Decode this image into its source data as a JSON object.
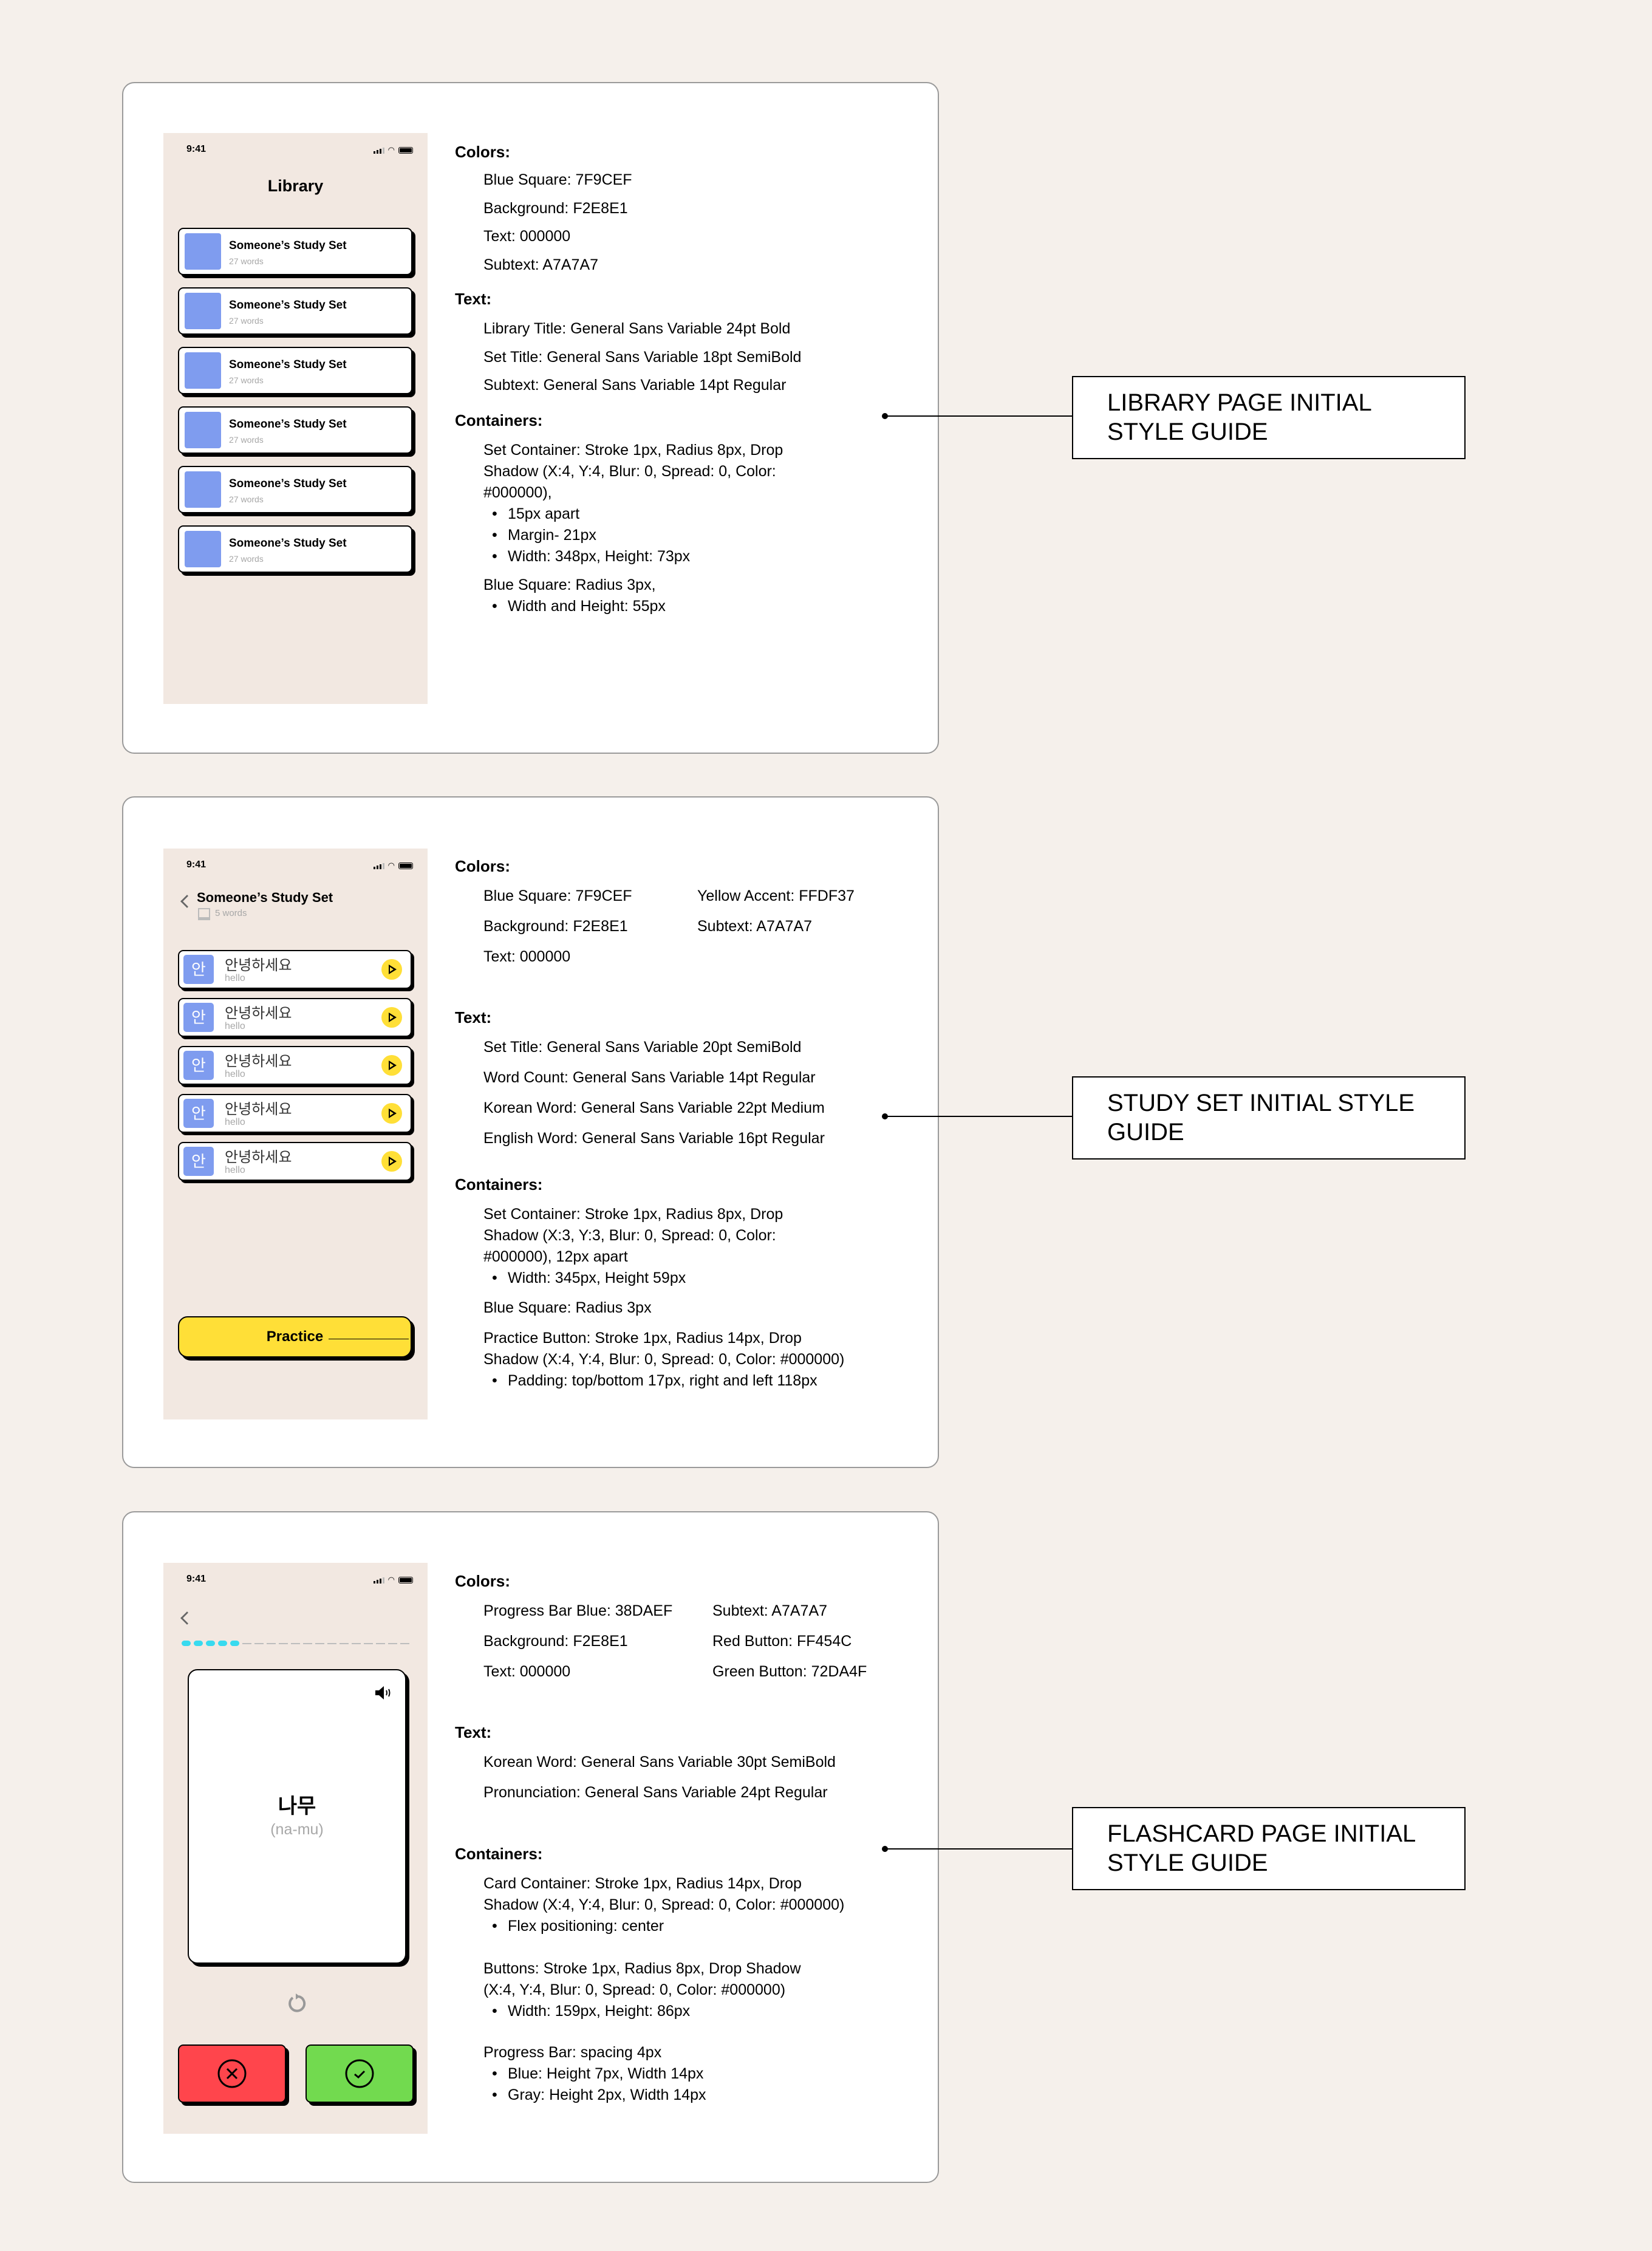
{
  "status_time": "9:41",
  "library": {
    "screen": {
      "title": "Library",
      "sets": [
        {
          "title": "Someone’s Study Set",
          "subtitle": "27 words"
        },
        {
          "title": "Someone’s Study Set",
          "subtitle": "27 words"
        },
        {
          "title": "Someone’s Study Set",
          "subtitle": "27 words"
        },
        {
          "title": "Someone’s Study Set",
          "subtitle": "27 words"
        },
        {
          "title": "Someone’s Study Set",
          "subtitle": "27 words"
        },
        {
          "title": "Someone’s Study Set",
          "subtitle": "27 words"
        }
      ]
    },
    "guide": {
      "colors_h": "Colors:",
      "colors": [
        "Blue Square: 7F9CEF",
        "Background: F2E8E1",
        "Text: 000000",
        "Subtext: A7A7A7"
      ],
      "text_h": "Text:",
      "text": [
        "Library Title: General Sans Variable 24pt Bold",
        "Set Title: General Sans Variable 18pt SemiBold",
        "Subtext: General Sans Variable 14pt Regular"
      ],
      "containers_h": "Containers:",
      "c1": [
        "Set Container: Stroke 1px, Radius 8px, Drop",
        "Shadow  (X:4, Y:4, Blur: 0, Spread: 0, Color:",
        "#000000),"
      ],
      "c1_bullets": [
        "15px apart",
        "Margin- 21px",
        "Width: 348px, Height: 73px"
      ],
      "c2": "Blue Square: Radius 3px,",
      "c2_bullets": [
        "Width and Height: 55px"
      ]
    },
    "label": "LIBRARY PAGE INITIAL STYLE GUIDE"
  },
  "study": {
    "screen": {
      "title": "Someone’s Study Set",
      "word_count": "5 words",
      "square_char": "안",
      "practice": "Practice",
      "words": [
        {
          "korean": "안녕하세요",
          "english": "hello"
        },
        {
          "korean": "안녕하세요",
          "english": "hello"
        },
        {
          "korean": "안녕하세요",
          "english": "hello"
        },
        {
          "korean": "안녕하세요",
          "english": "hello"
        },
        {
          "korean": "안녕하세요",
          "english": "hello"
        }
      ]
    },
    "guide": {
      "colors_h": "Colors:",
      "colors": [
        "Blue Square: 7F9CEF",
        "Background: F2E8E1",
        "Text: 000000"
      ],
      "colors_r": [
        "Yellow Accent: FFDF37",
        "Subtext: A7A7A7"
      ],
      "text_h": "Text:",
      "text": [
        "Set Title: General Sans Variable 20pt SemiBold",
        "Word Count: General Sans Variable 14pt Regular",
        "Korean Word: General Sans Variable 22pt Medium",
        "English Word: General Sans Variable 16pt Regular"
      ],
      "containers_h": "Containers:",
      "c1": [
        "Set Container: Stroke 1px, Radius 8px, Drop",
        "Shadow  (X:3, Y:3, Blur: 0, Spread: 0, Color:",
        "#000000), 12px apart"
      ],
      "c1_bullets": [
        "Width: 345px, Height 59px"
      ],
      "c2": "Blue Square: Radius 3px",
      "c3": [
        "Practice Button: Stroke 1px, Radius 14px, Drop",
        "Shadow  (X:4, Y:4, Blur: 0, Spread: 0, Color: #000000)"
      ],
      "c3_bullets": [
        "Padding: top/bottom 17px, right and left 118px"
      ]
    },
    "label": "STUDY SET INITIAL STYLE GUIDE"
  },
  "flash": {
    "screen": {
      "korean": "나무",
      "pronunciation": "(na-mu)",
      "progress_done": 5,
      "progress_total": 19
    },
    "guide": {
      "colors_h": "Colors:",
      "colors": [
        "Progress Bar Blue: 38DAEF",
        "Background: F2E8E1",
        "Text: 000000"
      ],
      "colors_r": [
        "Subtext: A7A7A7",
        "Red Button: FF454C",
        "Green Button: 72DA4F"
      ],
      "text_h": "Text:",
      "text": [
        "Korean Word: General Sans Variable 30pt SemiBold",
        "Pronunciation: General Sans Variable 24pt Regular"
      ],
      "containers_h": "Containers:",
      "c1": [
        "Card Container: Stroke 1px, Radius 14px, Drop",
        "Shadow  (X:4, Y:4, Blur: 0, Spread: 0, Color: #000000)"
      ],
      "c1_bullets": [
        "Flex positioning: center"
      ],
      "c2": [
        "Buttons: Stroke 1px, Radius 8px, Drop Shadow",
        "(X:4, Y:4, Blur: 0, Spread: 0, Color: #000000)"
      ],
      "c2_bullets": [
        "Width: 159px, Height: 86px"
      ],
      "c3": "Progress Bar: spacing 4px",
      "c3_bullets": [
        "Blue: Height 7px, Width 14px",
        "Gray: Height 2px, Width 14px"
      ]
    },
    "label": "FLASHCARD PAGE INITIAL STYLE GUIDE"
  },
  "colors": {
    "blue_square": "#7F9CEF",
    "background": "#F2E8E1",
    "yellow": "#FFDF37",
    "progress_blue": "#38DAEF",
    "red": "#FF454C",
    "green": "#72DA4F",
    "subtext": "#A7A7A7"
  }
}
